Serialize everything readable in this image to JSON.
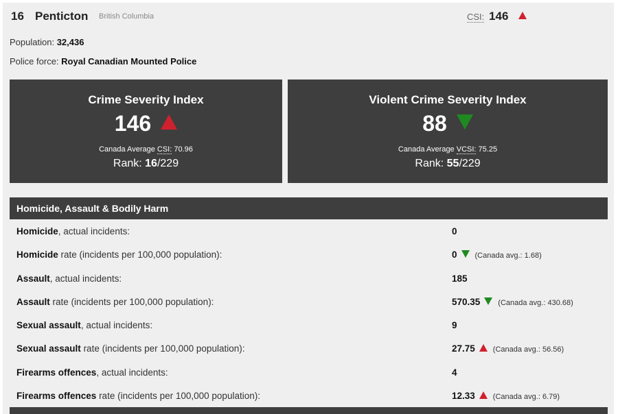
{
  "header": {
    "rank": "16",
    "city": "Penticton",
    "province": "British Columbia",
    "csi_abbr": "CSI:",
    "csi_value": "146",
    "csi_trend": "up"
  },
  "info": {
    "population_label": "Population:",
    "population_value": "32,436",
    "police_label": "Police force:",
    "police_value": "Royal Canadian Mounted Police"
  },
  "cards": [
    {
      "title": "Crime Severity Index",
      "value": "146",
      "trend": "up",
      "avg_label": "Canada Average",
      "avg_abbr": "CSI:",
      "avg_value": "70.96",
      "rank_label": "Rank:",
      "rank_value": "16",
      "rank_total": "/229"
    },
    {
      "title": "Violent Crime Severity Index",
      "value": "88",
      "trend": "down",
      "avg_label": "Canada Average",
      "avg_abbr": "VCSI:",
      "avg_value": "75.25",
      "rank_label": "Rank:",
      "rank_value": "55",
      "rank_total": "/229"
    }
  ],
  "section": {
    "title": "Homicide, Assault & Bodily Harm",
    "rows": [
      {
        "bold": "Homicide",
        "rest": ", actual incidents:",
        "value": "0",
        "trend": "",
        "avg": ""
      },
      {
        "bold": "Homicide",
        "rest": " rate (incidents per 100,000 population):",
        "value": "0",
        "trend": "down",
        "avg": "(Canada avg.: 1.68)"
      },
      {
        "bold": "Assault",
        "rest": ", actual incidents:",
        "value": "185",
        "trend": "",
        "avg": ""
      },
      {
        "bold": "Assault",
        "rest": " rate (incidents per 100,000 population):",
        "value": "570.35",
        "trend": "down",
        "avg": "(Canada avg.: 430.68)"
      },
      {
        "bold": "Sexual assault",
        "rest": ", actual incidents:",
        "value": "9",
        "trend": "",
        "avg": ""
      },
      {
        "bold": "Sexual assault",
        "rest": " rate (incidents per 100,000 population):",
        "value": "27.75",
        "trend": "up",
        "avg": "(Canada avg.: 56.56)"
      },
      {
        "bold": "Firearms offences",
        "rest": ", actual incidents:",
        "value": "4",
        "trend": "",
        "avg": ""
      },
      {
        "bold": "Firearms offences",
        "rest": " rate (incidents per 100,000 population):",
        "value": "12.33",
        "trend": "up",
        "avg": "(Canada avg.: 6.79)"
      }
    ]
  },
  "colors": {
    "up": "#d0202e",
    "down": "#1f8a1f",
    "dark": "#3e3e3e",
    "panel": "#efefef"
  }
}
